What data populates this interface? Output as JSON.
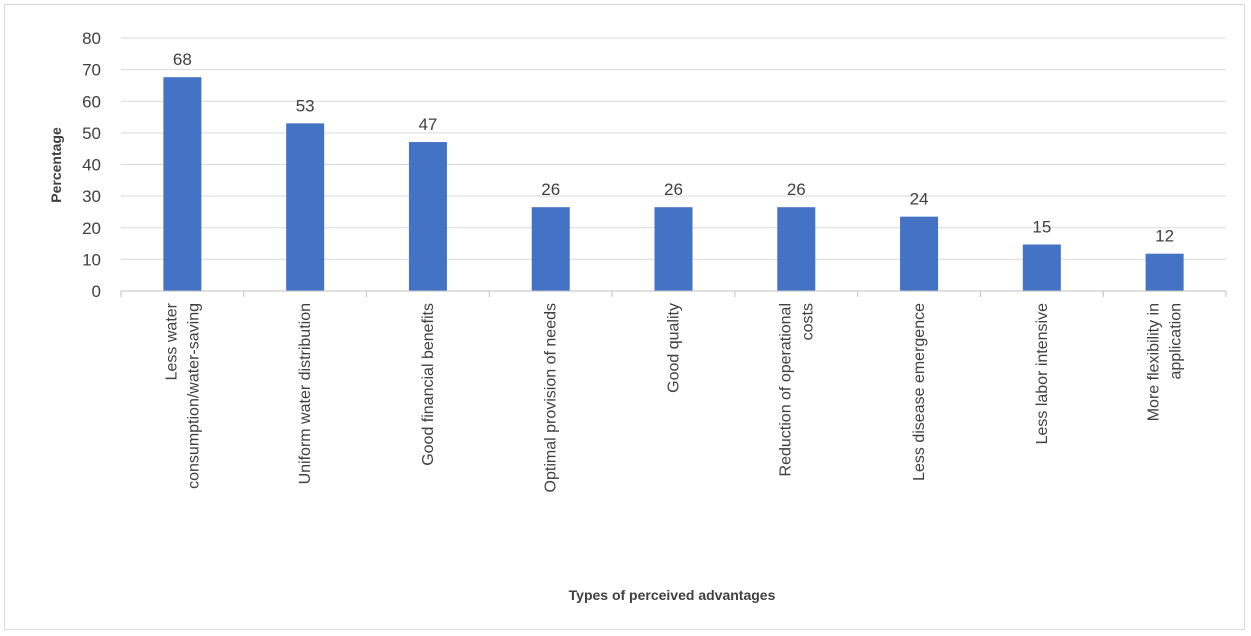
{
  "chart_data": {
    "type": "bar",
    "title": "",
    "xlabel": "Types of perceived advantages",
    "ylabel": "Percentage",
    "ylim": [
      0,
      80
    ],
    "yticks": [
      0,
      10,
      20,
      30,
      40,
      50,
      60,
      70,
      80
    ],
    "grid": true,
    "bar_color": "#4472c4",
    "categories": [
      [
        "Less water",
        "consumption/water-saving"
      ],
      [
        "Uniform water distribution"
      ],
      [
        "Good financial benefits"
      ],
      [
        "Optimal provision of needs"
      ],
      [
        "Good quality"
      ],
      [
        "Reduction of operational",
        "costs"
      ],
      [
        "Less disease emergence"
      ],
      [
        "Less labor intensive"
      ],
      [
        "More flexibility in",
        "application"
      ]
    ],
    "values": [
      67.6,
      53,
      47.1,
      26.5,
      26.5,
      26.5,
      23.5,
      14.7,
      11.8
    ],
    "data_labels": [
      "68",
      "53",
      "47",
      "26",
      "26",
      "26",
      "24",
      "15",
      "12"
    ]
  }
}
